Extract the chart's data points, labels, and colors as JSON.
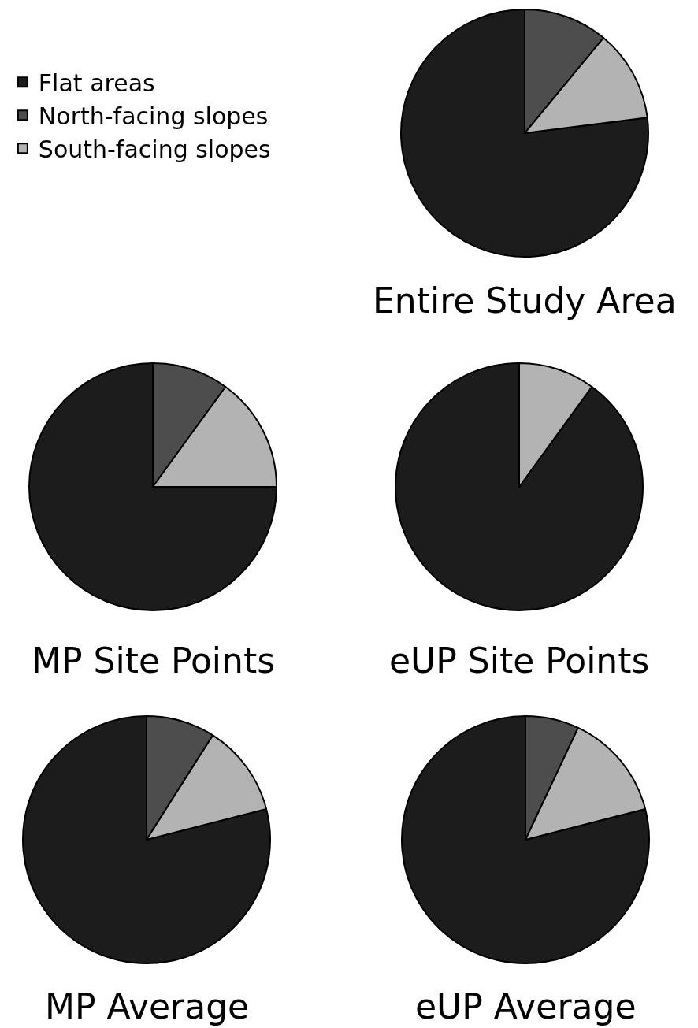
{
  "chart_data": [
    {
      "type": "pie",
      "title": "Entire Study Area",
      "categories": [
        "Flat areas",
        "North-facing slopes",
        "South-facing slopes"
      ],
      "values": [
        77,
        11,
        12
      ],
      "colors": [
        "#1c1c1c",
        "#4d4d4d",
        "#b3b3b3"
      ],
      "legend": "top left"
    },
    {
      "type": "pie",
      "title": "MP Site Points",
      "categories": [
        null,
        null,
        null
      ],
      "values": [
        75,
        10,
        15
      ],
      "colors": [
        "#1c1c1c",
        "#4d4d4d",
        "#b3b3b3"
      ]
    },
    {
      "type": "pie",
      "title": "eUP Site Points",
      "categories": [
        null,
        null,
        null
      ],
      "values": [
        90,
        0,
        10
      ],
      "colors": [
        "#1c1c1c",
        "#4d4d4d",
        "#b3b3b3"
      ]
    },
    {
      "type": "pie",
      "title": "MP Average",
      "categories": [
        null,
        null,
        null
      ],
      "values": [
        79,
        9,
        12
      ],
      "colors": [
        "#1c1c1c",
        "#4d4d4d",
        "#b3b3b3"
      ]
    },
    {
      "type": "pie",
      "title": "eUP Average",
      "categories": [
        null,
        null,
        null
      ],
      "values": [
        79,
        7,
        14
      ],
      "colors": [
        "#1c1c1c",
        "#4d4d4d",
        "#b3b3b3"
      ]
    }
  ]
}
